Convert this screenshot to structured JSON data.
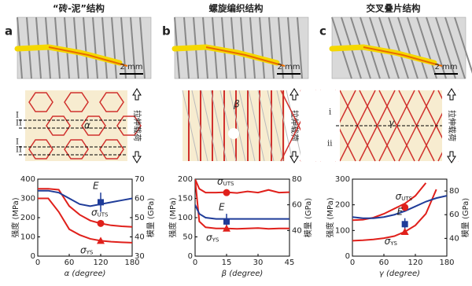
{
  "chart_data": [
    {
      "type": "line",
      "panel": "a",
      "title": "“砖-泥”结构",
      "scale_label": "2 mm",
      "load_label": "拉伸载荷",
      "diagram_labels": [
        "I",
        "II",
        "I",
        "II",
        "α"
      ],
      "x_label": "α (degree)",
      "y_label": "强度 (MPa)",
      "y2_label": "模量 (GPa)",
      "x": [
        0,
        20,
        40,
        60,
        80,
        100,
        120,
        140,
        160,
        180
      ],
      "xlim": [
        0,
        180
      ],
      "xticks": [
        0,
        60,
        120,
        180
      ],
      "ylim": [
        0,
        400
      ],
      "yticks": [
        0,
        100,
        200,
        300,
        400
      ],
      "y2lim": [
        30,
        70
      ],
      "y2ticks": [
        30,
        40,
        50,
        60,
        70
      ],
      "series": [
        {
          "name": "σUTS",
          "color": "#e0201b",
          "values": [
            350,
            350,
            345,
            260,
            215,
            185,
            170,
            160,
            155,
            152
          ]
        },
        {
          "name": "σYS",
          "color": "#e0201b",
          "values": [
            300,
            300,
            230,
            140,
            110,
            90,
            80,
            75,
            72,
            70
          ]
        },
        {
          "name": "E",
          "color": "#1f3c99",
          "axis": "y2",
          "values": [
            64,
            64,
            63,
            60,
            57,
            56,
            57,
            58,
            59,
            60
          ]
        }
      ],
      "points": {
        "x": 120,
        "uts": 170,
        "ys": 80,
        "e": 58,
        "e_err": 5
      },
      "labels": {
        "sigma": "σ",
        "uts": "UTS",
        "ys": "YS",
        "e": "E"
      }
    },
    {
      "type": "line",
      "panel": "b",
      "title": "螺旋编织结构",
      "scale_label": "2 mm",
      "load_label": "拉伸载荷",
      "diagram_labels": [
        "β"
      ],
      "x_label": "β (degree)",
      "y_label": "强度 (MPa)",
      "y2_label": "模量 (GPa)",
      "x": [
        0,
        2,
        5,
        10,
        15,
        20,
        25,
        30,
        35,
        40,
        45
      ],
      "xlim": [
        0,
        45
      ],
      "xticks": [
        0,
        15,
        30,
        45
      ],
      "ylim": [
        0,
        200
      ],
      "yticks": [
        0,
        50,
        100,
        150,
        200
      ],
      "y2lim": [
        20,
        80
      ],
      "y2ticks": [
        40,
        60,
        80
      ],
      "series": [
        {
          "name": "σUTS",
          "color": "#e0201b",
          "values": [
            200,
            175,
            165,
            165,
            166,
            164,
            168,
            165,
            172,
            165,
            166
          ]
        },
        {
          "name": "σYS",
          "color": "#e0201b",
          "values": [
            200,
            90,
            75,
            72,
            72,
            71,
            72,
            73,
            71,
            72,
            72
          ]
        },
        {
          "name": "E",
          "color": "#1f3c99",
          "axis": "y2",
          "values": [
            60,
            53,
            50,
            49,
            49,
            49,
            49,
            49,
            49,
            49,
            49
          ]
        }
      ],
      "points": {
        "x": 15,
        "uts": 165,
        "ys": 72,
        "e": 47,
        "e_err": 6
      },
      "labels": {
        "sigma": "σ",
        "uts": "UTS",
        "ys": "YS",
        "e": "E"
      }
    },
    {
      "type": "line",
      "panel": "c",
      "title": "交叉叠片结构",
      "scale_label": "2 mm",
      "load_label": "拉伸载荷",
      "diagram_labels": [
        "i",
        "ii",
        "γ"
      ],
      "x_label": "γ (degree)",
      "y_label": "强度 (MPa)",
      "y2_label": "模量 (GPa)",
      "x": [
        0,
        20,
        40,
        60,
        80,
        100,
        120,
        140,
        160,
        180
      ],
      "xlim": [
        0,
        180
      ],
      "xticks": [
        0,
        60,
        120,
        180
      ],
      "ylim": [
        0,
        300
      ],
      "yticks": [
        0,
        100,
        200,
        300
      ],
      "y2lim": [
        25,
        90
      ],
      "y2ticks": [
        40,
        60,
        80
      ],
      "series": [
        {
          "name": "σUTS",
          "color": "#e0201b",
          "values": [
            140,
            142,
            150,
            165,
            185,
            205,
            235,
            285,
            null,
            null
          ]
        },
        {
          "name": "σYS",
          "color": "#e0201b",
          "values": [
            60,
            62,
            65,
            70,
            78,
            95,
            120,
            165,
            260,
            null
          ]
        },
        {
          "name": "E",
          "color": "#1f3c99",
          "axis": "y2",
          "values": [
            58,
            57,
            57,
            58,
            60,
            63,
            67,
            71,
            74,
            76
          ]
        }
      ],
      "points": {
        "x": 100,
        "uts": 190,
        "ys": 95,
        "e": 52,
        "e_err": 5
      },
      "labels": {
        "sigma": "σ",
        "uts": "UTS",
        "ys": "YS",
        "e": "E"
      }
    }
  ]
}
